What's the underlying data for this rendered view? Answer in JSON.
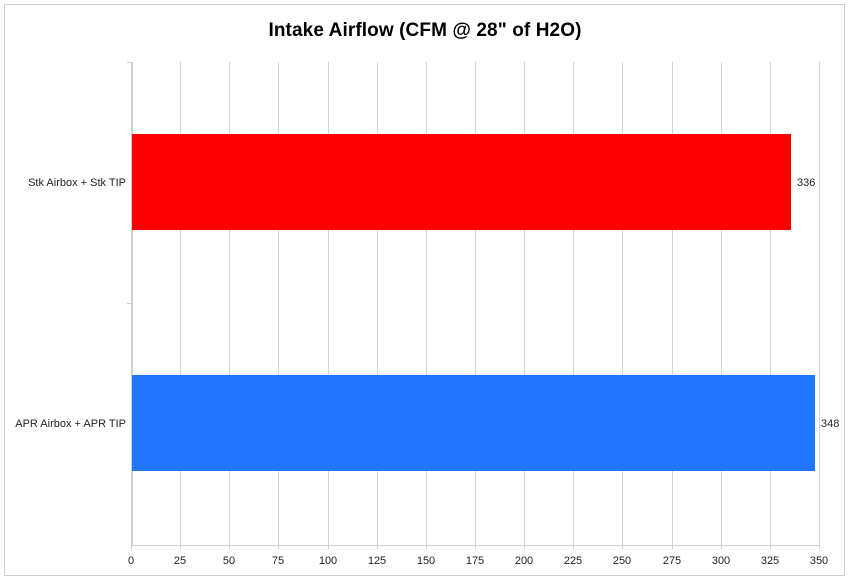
{
  "chart_data": {
    "type": "bar",
    "orientation": "horizontal",
    "title": "Intake Airflow (CFM @ 28\" of H2O)",
    "categories": [
      "Stk Airbox + Stk TIP",
      "APR Airbox + APR TIP"
    ],
    "values": [
      336,
      348
    ],
    "colors": [
      "#ff0000",
      "#2176ff"
    ],
    "data_labels": [
      "336",
      "348"
    ],
    "xlabel": "",
    "ylabel": "",
    "xlim": [
      0,
      350
    ],
    "x_ticks": [
      "0",
      "25",
      "50",
      "75",
      "100",
      "125",
      "150",
      "175",
      "200",
      "225",
      "250",
      "275",
      "300",
      "325",
      "350"
    ],
    "grid": true,
    "legend": "none"
  },
  "title": "Intake Airflow (CFM @ 28\" of H2O)",
  "bars": [
    {
      "category": "Stk Airbox + Stk TIP",
      "value": 336,
      "label": "336",
      "color": "#ff0000"
    },
    {
      "category": "APR Airbox + APR TIP",
      "value": 348,
      "label": "348",
      "color": "#2176ff"
    }
  ],
  "x_axis": {
    "ticks": [
      "0",
      "25",
      "50",
      "75",
      "100",
      "125",
      "150",
      "175",
      "200",
      "225",
      "250",
      "275",
      "300",
      "325",
      "350"
    ]
  }
}
